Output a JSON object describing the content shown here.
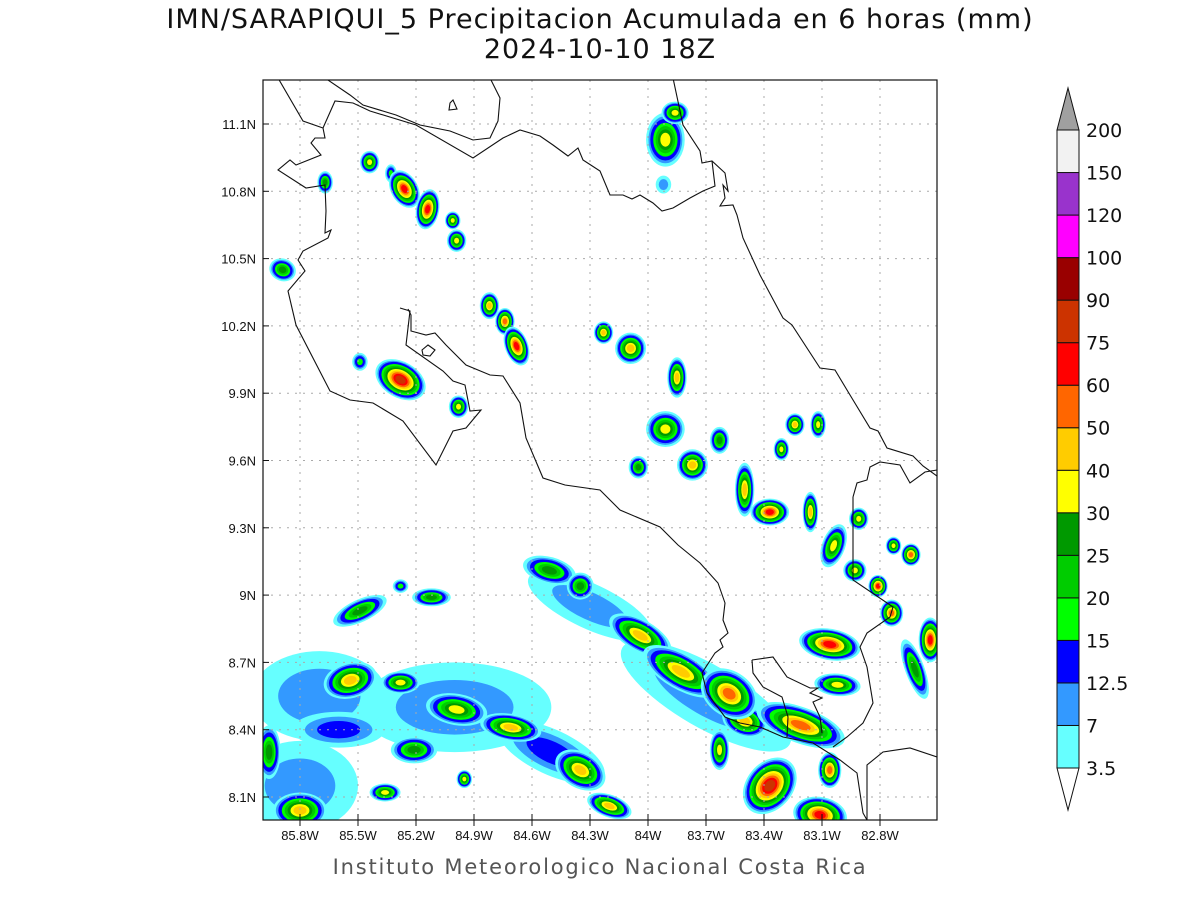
{
  "title": {
    "line1": "IMN/SARAPIQUI_5 Precipitacion Acumulada en 6 horas (mm)",
    "line2": "2024-10-10 18Z"
  },
  "footer": "Instituto Meteorologico Nacional Costa Rica",
  "map": {
    "lon_range": [
      -86.0,
      -82.5
    ],
    "lat_range": [
      8.0,
      11.3
    ],
    "lat_ticks": [
      {
        "v": 11.1,
        "label": "11.1N"
      },
      {
        "v": 10.8,
        "label": "10.8N"
      },
      {
        "v": 10.5,
        "label": "10.5N"
      },
      {
        "v": 10.2,
        "label": "10.2N"
      },
      {
        "v": 9.9,
        "label": "9.9N"
      },
      {
        "v": 9.6,
        "label": "9.6N"
      },
      {
        "v": 9.3,
        "label": "9.3N"
      },
      {
        "v": 9.0,
        "label": "9N"
      },
      {
        "v": 8.7,
        "label": "8.7N"
      },
      {
        "v": 8.4,
        "label": "8.4N"
      },
      {
        "v": 8.1,
        "label": "8.1N"
      }
    ],
    "lon_ticks": [
      {
        "v": -85.8,
        "label": "85.8W"
      },
      {
        "v": -85.5,
        "label": "85.5W"
      },
      {
        "v": -85.2,
        "label": "85.2W"
      },
      {
        "v": -84.9,
        "label": "84.9W"
      },
      {
        "v": -84.6,
        "label": "84.6W"
      },
      {
        "v": -84.3,
        "label": "84.3W"
      },
      {
        "v": -84.0,
        "label": "84W"
      },
      {
        "v": -83.7,
        "label": "83.7W"
      },
      {
        "v": -83.4,
        "label": "83.4W"
      },
      {
        "v": -83.1,
        "label": "83.1W"
      },
      {
        "v": -82.8,
        "label": "82.8W"
      }
    ],
    "grid": "dotted",
    "precip_cells": [
      {
        "lon": -85.44,
        "lat": 10.93,
        "peak": 30,
        "rlon": 0.05,
        "rlat": 0.05,
        "rot": 0
      },
      {
        "lon": -85.26,
        "lat": 10.81,
        "peak": 60,
        "rlon": 0.07,
        "rlat": 0.09,
        "rot": -30
      },
      {
        "lon": -85.14,
        "lat": 10.72,
        "peak": 60,
        "rlon": 0.06,
        "rlat": 0.09,
        "rot": 10
      },
      {
        "lon": -85.01,
        "lat": 10.67,
        "peak": 30,
        "rlon": 0.04,
        "rlat": 0.04,
        "rot": 0
      },
      {
        "lon": -84.99,
        "lat": 10.58,
        "peak": 30,
        "rlon": 0.05,
        "rlat": 0.05,
        "rot": 0
      },
      {
        "lon": -85.67,
        "lat": 10.84,
        "peak": 25,
        "rlon": 0.04,
        "rlat": 0.05,
        "rot": 0
      },
      {
        "lon": -85.89,
        "lat": 10.45,
        "peak": 25,
        "rlon": 0.07,
        "rlat": 0.05,
        "rot": 20
      },
      {
        "lon": -85.33,
        "lat": 10.88,
        "peak": 15,
        "rlon": 0.03,
        "rlat": 0.04,
        "rot": 0
      },
      {
        "lon": -83.91,
        "lat": 11.03,
        "peak": 30,
        "rlon": 0.1,
        "rlat": 0.12,
        "rot": 0
      },
      {
        "lon": -83.86,
        "lat": 11.15,
        "peak": 30,
        "rlon": 0.07,
        "rlat": 0.05,
        "rot": 0
      },
      {
        "lon": -83.92,
        "lat": 10.83,
        "peak": 7,
        "rlon": 0.04,
        "rlat": 0.04,
        "rot": 0
      },
      {
        "lon": -84.82,
        "lat": 10.29,
        "peak": 40,
        "rlon": 0.05,
        "rlat": 0.06,
        "rot": 0
      },
      {
        "lon": -84.74,
        "lat": 10.22,
        "peak": 50,
        "rlon": 0.05,
        "rlat": 0.06,
        "rot": 0
      },
      {
        "lon": -84.68,
        "lat": 10.11,
        "peak": 60,
        "rlon": 0.06,
        "rlat": 0.09,
        "rot": -20
      },
      {
        "lon": -84.23,
        "lat": 10.17,
        "peak": 40,
        "rlon": 0.05,
        "rlat": 0.05,
        "rot": 0
      },
      {
        "lon": -84.09,
        "lat": 10.1,
        "peak": 40,
        "rlon": 0.08,
        "rlat": 0.07,
        "rot": 0
      },
      {
        "lon": -85.28,
        "lat": 9.96,
        "peak": 75,
        "rlon": 0.14,
        "rlat": 0.08,
        "rot": 30
      },
      {
        "lon": -84.98,
        "lat": 9.84,
        "peak": 30,
        "rlon": 0.05,
        "rlat": 0.05,
        "rot": 0
      },
      {
        "lon": -85.49,
        "lat": 10.04,
        "peak": 15,
        "rlon": 0.04,
        "rlat": 0.04,
        "rot": 0
      },
      {
        "lon": -83.85,
        "lat": 9.97,
        "peak": 40,
        "rlon": 0.05,
        "rlat": 0.09,
        "rot": 0
      },
      {
        "lon": -83.91,
        "lat": 9.74,
        "peak": 30,
        "rlon": 0.1,
        "rlat": 0.08,
        "rot": 0
      },
      {
        "lon": -83.63,
        "lat": 9.69,
        "peak": 25,
        "rlon": 0.05,
        "rlat": 0.06,
        "rot": 0
      },
      {
        "lon": -83.77,
        "lat": 9.58,
        "peak": 40,
        "rlon": 0.08,
        "rlat": 0.07,
        "rot": 0
      },
      {
        "lon": -84.05,
        "lat": 9.57,
        "peak": 25,
        "rlon": 0.05,
        "rlat": 0.05,
        "rot": 0
      },
      {
        "lon": -83.5,
        "lat": 9.47,
        "peak": 40,
        "rlon": 0.05,
        "rlat": 0.12,
        "rot": 0
      },
      {
        "lon": -83.37,
        "lat": 9.37,
        "peak": 60,
        "rlon": 0.1,
        "rlat": 0.06,
        "rot": 0
      },
      {
        "lon": -83.31,
        "lat": 9.65,
        "peak": 30,
        "rlon": 0.04,
        "rlat": 0.05,
        "rot": 0
      },
      {
        "lon": -83.24,
        "lat": 9.76,
        "peak": 40,
        "rlon": 0.05,
        "rlat": 0.05,
        "rot": 0
      },
      {
        "lon": -83.12,
        "lat": 9.76,
        "peak": 30,
        "rlon": 0.04,
        "rlat": 0.06,
        "rot": 0
      },
      {
        "lon": -83.16,
        "lat": 9.37,
        "peak": 40,
        "rlon": 0.04,
        "rlat": 0.09,
        "rot": 0
      },
      {
        "lon": -82.91,
        "lat": 9.34,
        "peak": 30,
        "rlon": 0.05,
        "rlat": 0.05,
        "rot": 0
      },
      {
        "lon": -83.04,
        "lat": 9.22,
        "peak": 30,
        "rlon": 0.06,
        "rlat": 0.1,
        "rot": 20
      },
      {
        "lon": -82.93,
        "lat": 9.11,
        "peak": 30,
        "rlon": 0.06,
        "rlat": 0.05,
        "rot": 0
      },
      {
        "lon": -82.81,
        "lat": 9.04,
        "peak": 60,
        "rlon": 0.05,
        "rlat": 0.05,
        "rot": 0
      },
      {
        "lon": -82.73,
        "lat": 9.22,
        "peak": 30,
        "rlon": 0.04,
        "rlat": 0.04,
        "rot": 0
      },
      {
        "lon": -82.64,
        "lat": 9.18,
        "peak": 50,
        "rlon": 0.05,
        "rlat": 0.05,
        "rot": 0
      },
      {
        "lon": -82.54,
        "lat": 8.8,
        "peak": 60,
        "rlon": 0.06,
        "rlat": 0.1,
        "rot": 0
      },
      {
        "lon": -83.06,
        "lat": 8.78,
        "peak": 60,
        "rlon": 0.16,
        "rlat": 0.07,
        "rot": 10
      },
      {
        "lon": -82.74,
        "lat": 8.92,
        "peak": 50,
        "rlon": 0.06,
        "rlat": 0.06,
        "rot": 0
      },
      {
        "lon": -83.02,
        "lat": 8.6,
        "peak": 30,
        "rlon": 0.12,
        "rlat": 0.05,
        "rot": 5
      },
      {
        "lon": -82.62,
        "lat": 8.67,
        "peak": 25,
        "rlon": 0.05,
        "rlat": 0.14,
        "rot": -20
      },
      {
        "lon": -85.49,
        "lat": 8.93,
        "peak": 25,
        "rlon": 0.15,
        "rlat": 0.05,
        "rot": -25
      },
      {
        "lon": -85.12,
        "lat": 8.99,
        "peak": 25,
        "rlon": 0.1,
        "rlat": 0.04,
        "rot": 0
      },
      {
        "lon": -85.28,
        "lat": 9.04,
        "peak": 15,
        "rlon": 0.04,
        "rlat": 0.03,
        "rot": 0
      },
      {
        "lon": -84.51,
        "lat": 9.11,
        "peak": 25,
        "rlon": 0.14,
        "rlat": 0.06,
        "rot": 15
      },
      {
        "lon": -84.35,
        "lat": 9.04,
        "peak": 25,
        "rlon": 0.07,
        "rlat": 0.06,
        "rot": 0
      },
      {
        "lon": -84.04,
        "lat": 8.82,
        "peak": 40,
        "rlon": 0.18,
        "rlat": 0.07,
        "rot": 30
      },
      {
        "lon": -83.83,
        "lat": 8.66,
        "peak": 40,
        "rlon": 0.22,
        "rlat": 0.08,
        "rot": 30
      },
      {
        "lon": -83.58,
        "lat": 8.56,
        "peak": 50,
        "rlon": 0.16,
        "rlat": 0.1,
        "rot": 35
      },
      {
        "lon": -83.21,
        "lat": 8.42,
        "peak": 50,
        "rlon": 0.24,
        "rlat": 0.08,
        "rot": 20
      },
      {
        "lon": -83.5,
        "lat": 8.44,
        "peak": 40,
        "rlon": 0.12,
        "rlat": 0.07,
        "rot": 20
      },
      {
        "lon": -83.37,
        "lat": 8.15,
        "peak": 75,
        "rlon": 0.12,
        "rlat": 0.14,
        "rot": 40
      },
      {
        "lon": -83.06,
        "lat": 8.22,
        "peak": 50,
        "rlon": 0.06,
        "rlat": 0.08,
        "rot": 0
      },
      {
        "lon": -83.11,
        "lat": 8.02,
        "peak": 60,
        "rlon": 0.14,
        "rlat": 0.08,
        "rot": 10
      },
      {
        "lon": -83.63,
        "lat": 8.31,
        "peak": 30,
        "rlon": 0.05,
        "rlat": 0.09,
        "rot": 0
      },
      {
        "lon": -84.35,
        "lat": 8.22,
        "peak": 40,
        "rlon": 0.14,
        "rlat": 0.08,
        "rot": 30
      },
      {
        "lon": -84.2,
        "lat": 8.06,
        "peak": 40,
        "rlon": 0.12,
        "rlat": 0.05,
        "rot": 20
      },
      {
        "lon": -84.71,
        "lat": 8.41,
        "peak": 40,
        "rlon": 0.16,
        "rlat": 0.06,
        "rot": 10
      },
      {
        "lon": -84.99,
        "lat": 8.49,
        "peak": 30,
        "rlon": 0.16,
        "rlat": 0.07,
        "rot": 10
      },
      {
        "lon": -85.54,
        "lat": 8.62,
        "peak": 40,
        "rlon": 0.14,
        "rlat": 0.08,
        "rot": -15
      },
      {
        "lon": -85.28,
        "lat": 8.61,
        "peak": 30,
        "rlon": 0.1,
        "rlat": 0.05,
        "rot": 0
      },
      {
        "lon": -85.21,
        "lat": 8.31,
        "peak": 25,
        "rlon": 0.12,
        "rlat": 0.06,
        "rot": 0
      },
      {
        "lon": -85.36,
        "lat": 8.12,
        "peak": 30,
        "rlon": 0.08,
        "rlat": 0.04,
        "rot": 0
      },
      {
        "lon": -85.8,
        "lat": 8.04,
        "peak": 40,
        "rlon": 0.14,
        "rlat": 0.08,
        "rot": 0
      },
      {
        "lon": -85.96,
        "lat": 8.3,
        "peak": 25,
        "rlon": 0.06,
        "rlat": 0.12,
        "rot": 0
      },
      {
        "lon": -84.95,
        "lat": 8.18,
        "peak": 30,
        "rlon": 0.04,
        "rlat": 0.04,
        "rot": 0
      },
      {
        "lon": -85.6,
        "lat": 8.4,
        "peak": 12.5,
        "rlon": 0.24,
        "rlat": 0.08,
        "rot": 0
      },
      {
        "lon": -84.5,
        "lat": 8.3,
        "peak": 12.5,
        "rlon": 0.3,
        "rlat": 0.1,
        "rot": 25
      },
      {
        "lon": -85.0,
        "lat": 8.5,
        "peak": 7,
        "rlon": 0.5,
        "rlat": 0.2,
        "rot": 0
      },
      {
        "lon": -85.7,
        "lat": 8.55,
        "peak": 7,
        "rlon": 0.35,
        "rlat": 0.2,
        "rot": 0
      },
      {
        "lon": -85.8,
        "lat": 8.15,
        "peak": 7,
        "rlon": 0.3,
        "rlat": 0.2,
        "rot": 0
      },
      {
        "lon": -83.7,
        "lat": 8.55,
        "peak": 7,
        "rlon": 0.5,
        "rlat": 0.14,
        "rot": 30
      },
      {
        "lon": -84.3,
        "lat": 8.95,
        "peak": 7,
        "rlon": 0.35,
        "rlat": 0.1,
        "rot": 25
      }
    ]
  },
  "colorbar": {
    "levels": [
      "3.5",
      "7",
      "12.5",
      "15",
      "20",
      "25",
      "30",
      "40",
      "50",
      "60",
      "75",
      "90",
      "100",
      "120",
      "150",
      "200"
    ],
    "colors": [
      "#66ffff",
      "#3399ff",
      "#0000ff",
      "#00ff00",
      "#00cc00",
      "#009900",
      "#ffff00",
      "#ffcc00",
      "#ff6600",
      "#ff0000",
      "#cc3300",
      "#990000",
      "#ff00ff",
      "#9933cc",
      "#f2f2f2"
    ],
    "over_color": "#a0a0a0",
    "under_color": "#ffffff"
  }
}
